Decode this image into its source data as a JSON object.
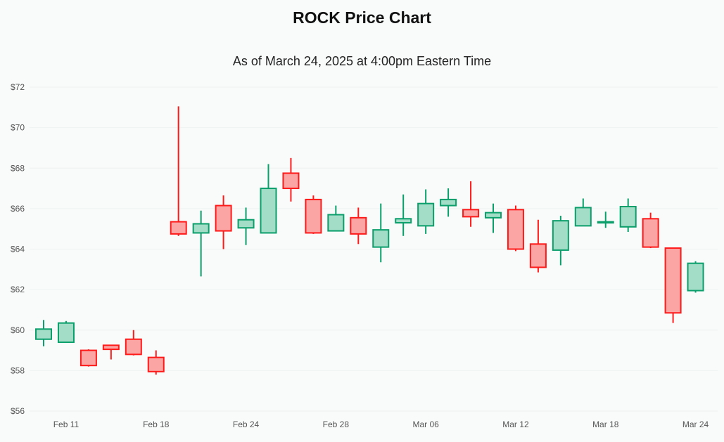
{
  "chart_data": {
    "type": "candlestick",
    "title": "ROCK Price Chart",
    "subtitle": "As of March 24, 2025 at 4:00pm Eastern Time",
    "xlabel": "",
    "ylabel": "",
    "ylim": [
      56,
      72
    ],
    "y_ticks": [
      56,
      58,
      60,
      62,
      64,
      66,
      68,
      70,
      72
    ],
    "y_tick_labels": [
      "$56",
      "$58",
      "$60",
      "$62",
      "$64",
      "$66",
      "$68",
      "$70",
      "$72"
    ],
    "x_tick_labels": [
      {
        "index": 1,
        "label": "Feb 11"
      },
      {
        "index": 5,
        "label": "Feb 18"
      },
      {
        "index": 9,
        "label": "Feb 24"
      },
      {
        "index": 13,
        "label": "Feb 28"
      },
      {
        "index": 17,
        "label": "Mar 06"
      },
      {
        "index": 21,
        "label": "Mar 12"
      },
      {
        "index": 25,
        "label": "Mar 18"
      },
      {
        "index": 29,
        "label": "Mar 24"
      }
    ],
    "grid": true,
    "colors": {
      "up_stroke": "#0a9f6b",
      "up_fill": "#a3dcc7",
      "down_stroke": "#ff1a1a",
      "down_fill": "#fca5a5"
    },
    "candles": [
      {
        "date": "Feb 10",
        "open": 59.55,
        "high": 60.5,
        "low": 59.2,
        "close": 60.05
      },
      {
        "date": "Feb 11",
        "open": 59.4,
        "high": 60.45,
        "low": 59.4,
        "close": 60.35
      },
      {
        "date": "Feb 12",
        "open": 59.0,
        "high": 59.05,
        "low": 58.2,
        "close": 58.25
      },
      {
        "date": "Feb 13",
        "open": 59.25,
        "high": 59.25,
        "low": 58.55,
        "close": 59.05
      },
      {
        "date": "Feb 14",
        "open": 59.55,
        "high": 60.0,
        "low": 58.75,
        "close": 58.8
      },
      {
        "date": "Feb 18",
        "open": 58.65,
        "high": 59.0,
        "low": 57.8,
        "close": 57.95
      },
      {
        "date": "Feb 19",
        "open": 65.35,
        "high": 71.05,
        "low": 64.65,
        "close": 64.75
      },
      {
        "date": "Feb 20",
        "open": 64.8,
        "high": 65.9,
        "low": 62.65,
        "close": 65.25
      },
      {
        "date": "Feb 21",
        "open": 66.15,
        "high": 66.65,
        "low": 64.0,
        "close": 64.9
      },
      {
        "date": "Feb 24",
        "open": 65.05,
        "high": 66.05,
        "low": 64.2,
        "close": 65.45
      },
      {
        "date": "Feb 25",
        "open": 64.8,
        "high": 68.2,
        "low": 64.8,
        "close": 67.0
      },
      {
        "date": "Feb 26",
        "open": 67.75,
        "high": 68.5,
        "low": 66.35,
        "close": 67.0
      },
      {
        "date": "Feb 27",
        "open": 66.45,
        "high": 66.65,
        "low": 64.75,
        "close": 64.8
      },
      {
        "date": "Feb 28",
        "open": 64.9,
        "high": 66.15,
        "low": 64.9,
        "close": 65.7
      },
      {
        "date": "Mar 03",
        "open": 65.55,
        "high": 66.05,
        "low": 64.25,
        "close": 64.75
      },
      {
        "date": "Mar 04",
        "open": 64.1,
        "high": 66.25,
        "low": 63.35,
        "close": 64.95
      },
      {
        "date": "Mar 05",
        "open": 65.3,
        "high": 66.7,
        "low": 64.65,
        "close": 65.5
      },
      {
        "date": "Mar 06",
        "open": 65.15,
        "high": 66.95,
        "low": 64.75,
        "close": 66.25
      },
      {
        "date": "Mar 07",
        "open": 66.15,
        "high": 67.0,
        "low": 65.6,
        "close": 66.45
      },
      {
        "date": "Mar 10",
        "open": 65.95,
        "high": 67.35,
        "low": 65.1,
        "close": 65.6
      },
      {
        "date": "Mar 11",
        "open": 65.55,
        "high": 66.25,
        "low": 64.8,
        "close": 65.8
      },
      {
        "date": "Mar 12",
        "open": 65.95,
        "high": 66.15,
        "low": 63.9,
        "close": 64.0
      },
      {
        "date": "Mar 13",
        "open": 64.25,
        "high": 65.45,
        "low": 62.85,
        "close": 63.1
      },
      {
        "date": "Mar 14",
        "open": 63.95,
        "high": 65.65,
        "low": 63.2,
        "close": 65.4
      },
      {
        "date": "Mar 17",
        "open": 65.15,
        "high": 66.5,
        "low": 65.15,
        "close": 66.05
      },
      {
        "date": "Mar 18",
        "open": 65.3,
        "high": 65.85,
        "low": 65.05,
        "close": 65.35
      },
      {
        "date": "Mar 19",
        "open": 65.1,
        "high": 66.5,
        "low": 64.85,
        "close": 66.1
      },
      {
        "date": "Mar 20",
        "open": 65.5,
        "high": 65.8,
        "low": 64.05,
        "close": 64.1
      },
      {
        "date": "Mar 21",
        "open": 64.05,
        "high": 64.05,
        "low": 60.35,
        "close": 60.85
      },
      {
        "date": "Mar 24",
        "open": 61.95,
        "high": 63.4,
        "low": 61.85,
        "close": 63.3
      }
    ]
  }
}
